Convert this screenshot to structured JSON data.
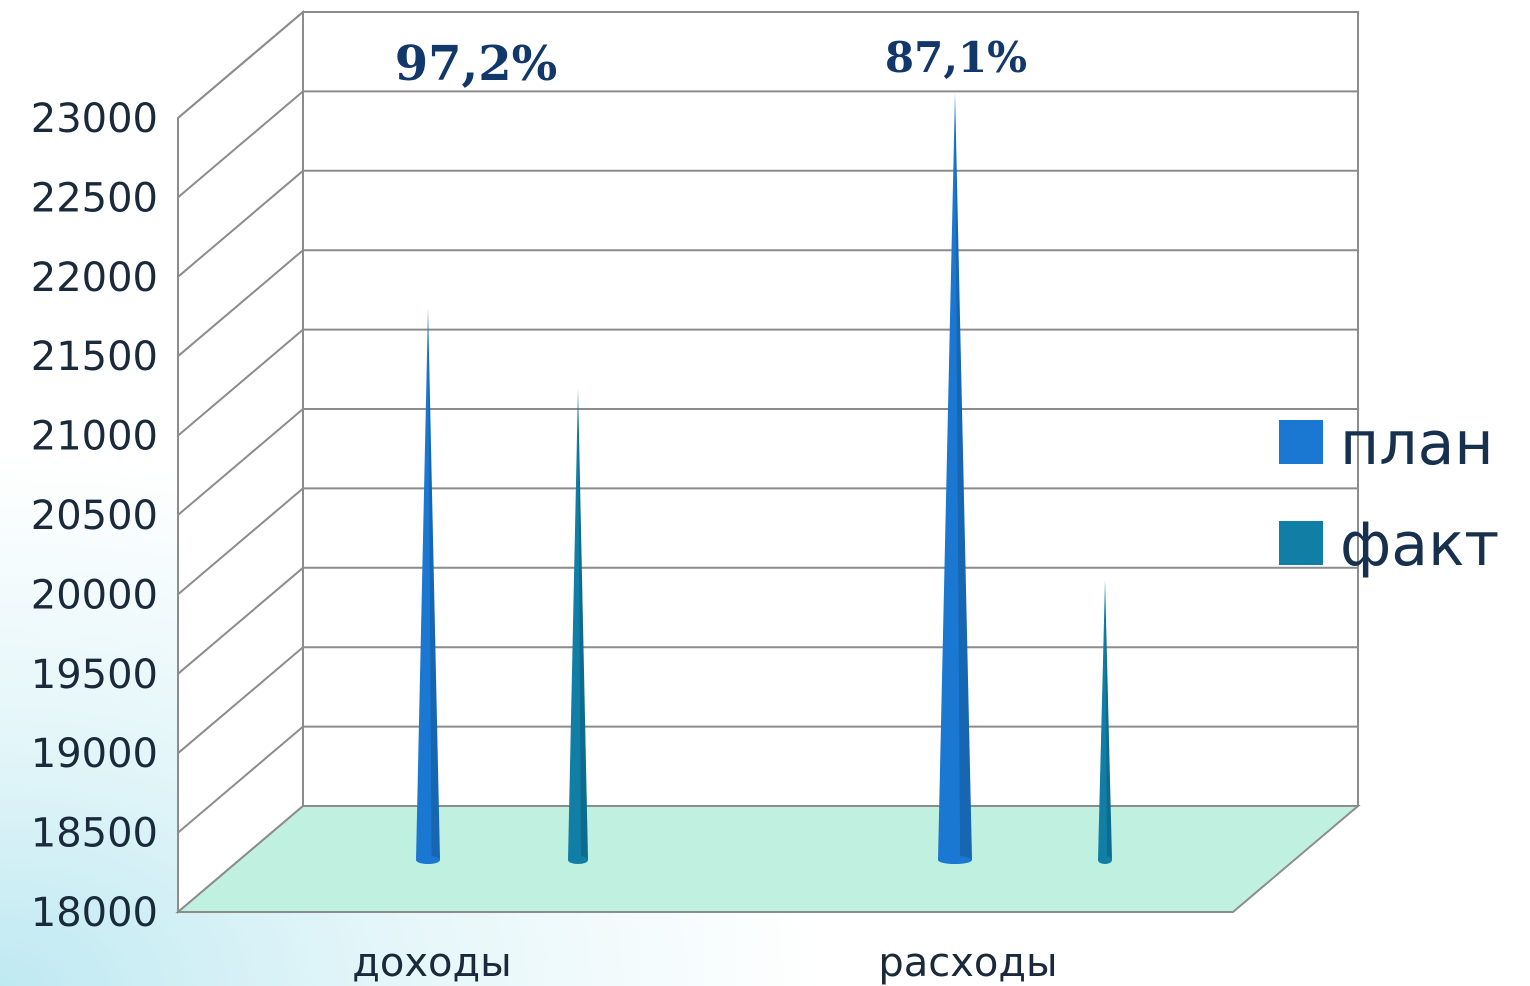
{
  "chart_data": {
    "type": "bar",
    "style": "3d-cone",
    "categories": [
      "доходы",
      "расходы"
    ],
    "series": [
      {
        "name": "план",
        "values": [
          21450,
          22800
        ],
        "color": "#1a78d2"
      },
      {
        "name": "факт",
        "values": [
          20950,
          19750
        ],
        "color": "#117ea6"
      }
    ],
    "ylim": [
      18000,
      23000
    ],
    "yticks": [
      "23000",
      "22500",
      "22000",
      "21500",
      "21000",
      "20500",
      "20000",
      "19500",
      "19000",
      "18500",
      "18000"
    ],
    "annotations": [
      "97,2%",
      "87,1%"
    ],
    "legend_position": "right",
    "grid": true,
    "floor_color": "#bff0e0"
  }
}
